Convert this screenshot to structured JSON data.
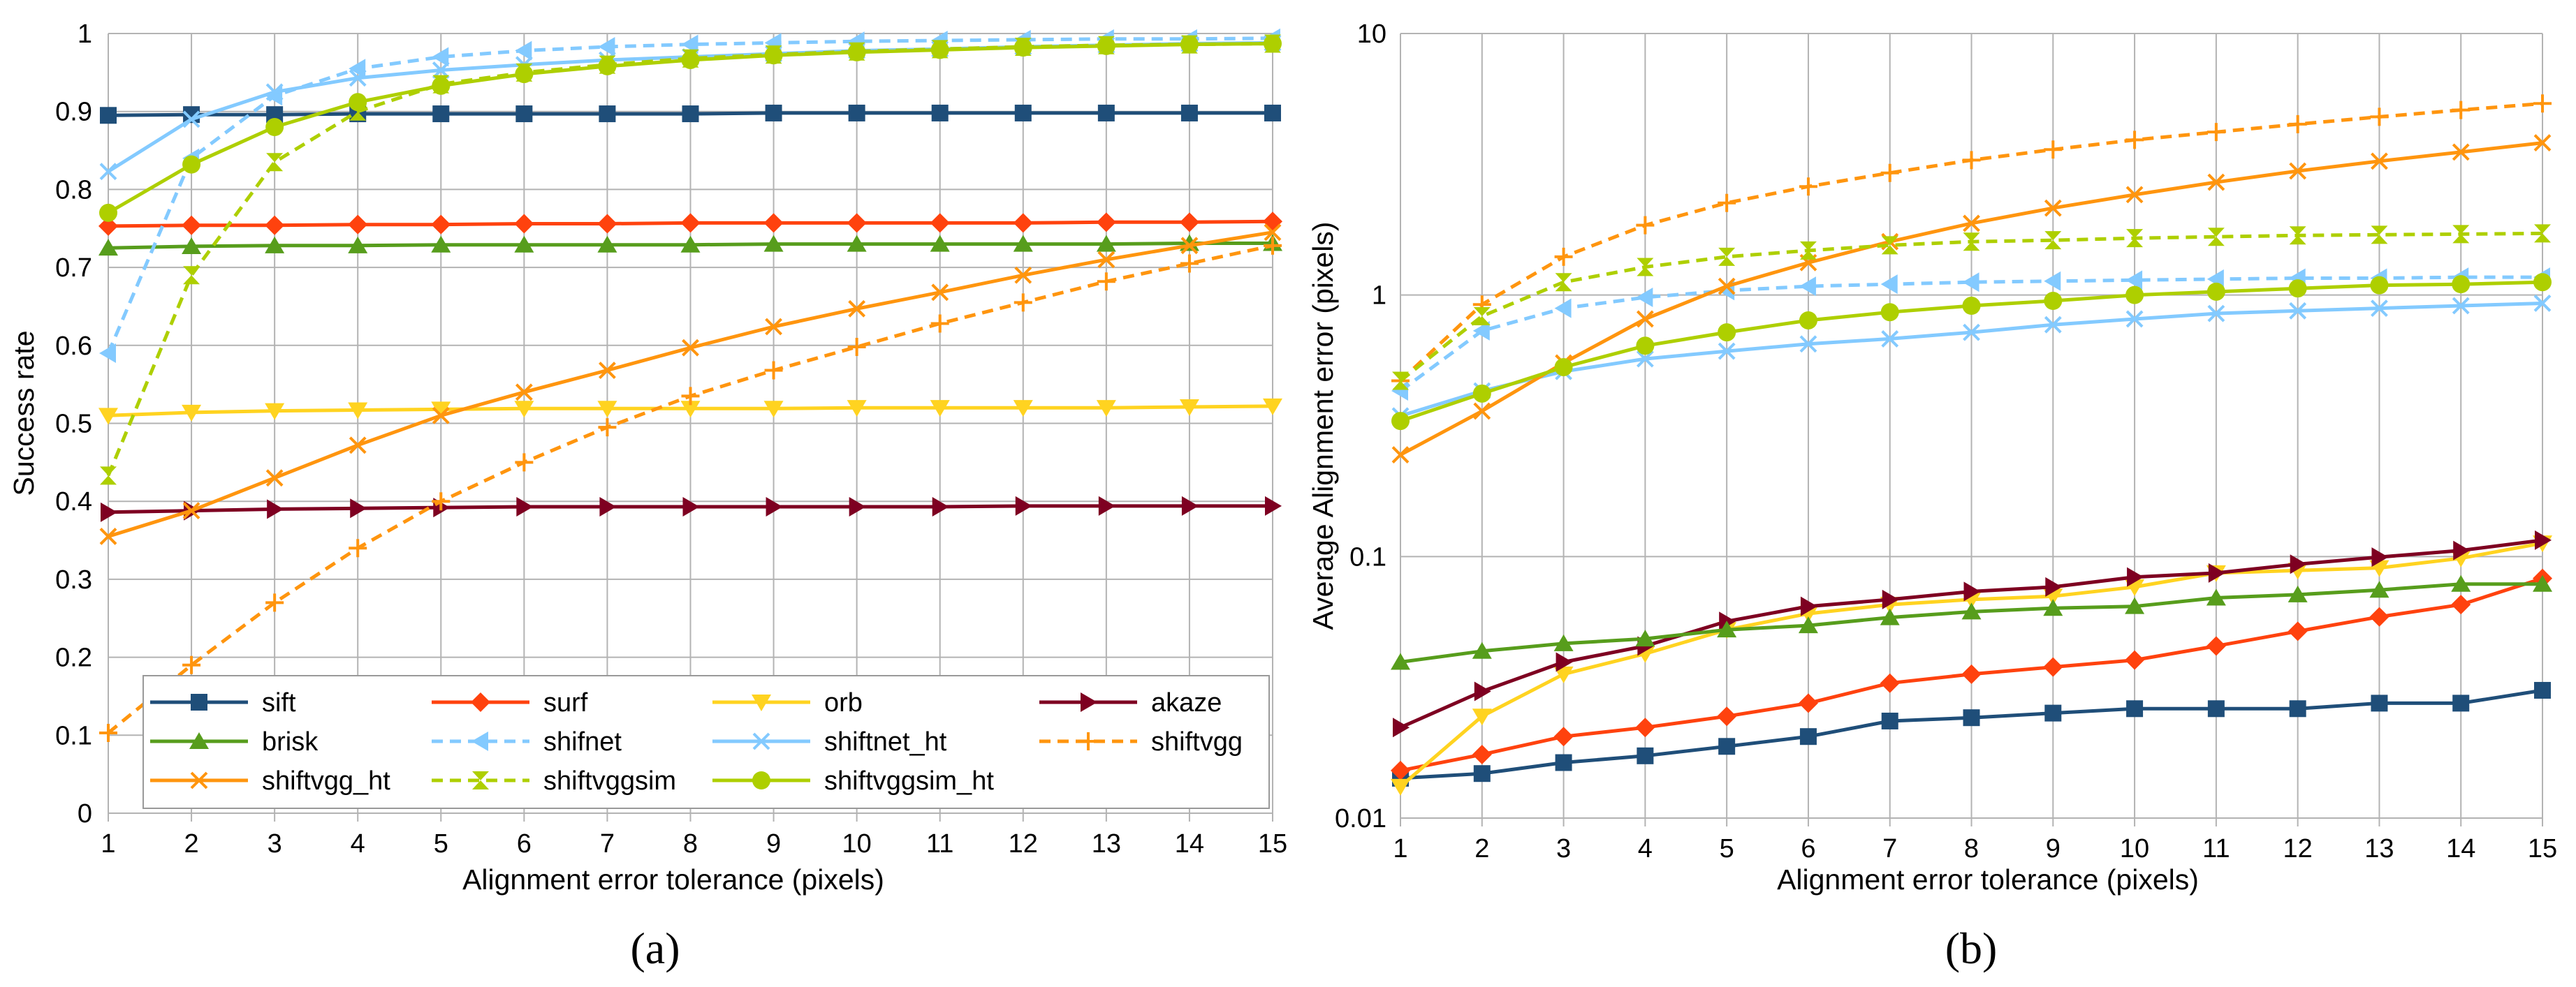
{
  "series_styles": {
    "sift": {
      "color": "#1f4e79",
      "dash": false,
      "marker": "square"
    },
    "surf": {
      "color": "#ff420e",
      "dash": false,
      "marker": "diamond"
    },
    "orb": {
      "color": "#ffd320",
      "dash": false,
      "marker": "tri-down"
    },
    "akaze": {
      "color": "#7e0021",
      "dash": false,
      "marker": "tri-right"
    },
    "brisk": {
      "color": "#579d1c",
      "dash": false,
      "marker": "tri-up"
    },
    "shifnet": {
      "color": "#83caff",
      "dash": true,
      "marker": "tri-left"
    },
    "shiftnet_ht": {
      "color": "#83caff",
      "dash": false,
      "marker": "x"
    },
    "shiftvgg": {
      "color": "#ff950e",
      "dash": true,
      "marker": "plus"
    },
    "shiftvgg_ht": {
      "color": "#ff950e",
      "dash": false,
      "marker": "x"
    },
    "shiftvggsim": {
      "color": "#aecf00",
      "dash": true,
      "marker": "hourglass"
    },
    "shiftvggsim_ht": {
      "color": "#aecf00",
      "dash": false,
      "marker": "circle"
    }
  },
  "chart_data": [
    {
      "type": "line",
      "caption": "(a)",
      "xlabel": "Alignment error tolerance (pixels)",
      "ylabel": "Success rate",
      "x": [
        1,
        2,
        3,
        4,
        5,
        6,
        7,
        8,
        9,
        10,
        11,
        12,
        13,
        14,
        15
      ],
      "xticks": [
        "1",
        "2",
        "3",
        "4",
        "5",
        "6",
        "7",
        "8",
        "9",
        "10",
        "11",
        "12",
        "13",
        "14",
        "15"
      ],
      "ylim": [
        0,
        1
      ],
      "yticks": [
        "0",
        "0.1",
        "0.2",
        "0.3",
        "0.4",
        "0.5",
        "0.6",
        "0.7",
        "0.8",
        "0.9",
        "1"
      ],
      "ytick_values": [
        0,
        0.1,
        0.2,
        0.3,
        0.4,
        0.5,
        0.6,
        0.7,
        0.8,
        0.9,
        1
      ],
      "legend": [
        "sift",
        "surf",
        "orb",
        "akaze",
        "brisk",
        "shifnet",
        "shiftnet_ht",
        "shiftvgg",
        "shiftvgg_ht",
        "shiftvggsim",
        "shiftvggsim_ht"
      ],
      "series": [
        {
          "name": "sift",
          "values": [
            0.895,
            0.896,
            0.896,
            0.897,
            0.897,
            0.897,
            0.897,
            0.897,
            0.898,
            0.898,
            0.898,
            0.898,
            0.898,
            0.898,
            0.898
          ]
        },
        {
          "name": "surf",
          "values": [
            0.753,
            0.754,
            0.754,
            0.755,
            0.755,
            0.756,
            0.756,
            0.757,
            0.757,
            0.757,
            0.757,
            0.757,
            0.758,
            0.758,
            0.759
          ]
        },
        {
          "name": "orb",
          "values": [
            0.51,
            0.514,
            0.516,
            0.517,
            0.518,
            0.519,
            0.519,
            0.519,
            0.519,
            0.52,
            0.52,
            0.52,
            0.52,
            0.521,
            0.522
          ]
        },
        {
          "name": "akaze",
          "values": [
            0.386,
            0.388,
            0.39,
            0.391,
            0.392,
            0.393,
            0.393,
            0.393,
            0.393,
            0.393,
            0.393,
            0.394,
            0.394,
            0.394,
            0.394
          ]
        },
        {
          "name": "brisk",
          "values": [
            0.725,
            0.727,
            0.728,
            0.728,
            0.729,
            0.729,
            0.729,
            0.729,
            0.73,
            0.73,
            0.73,
            0.73,
            0.73,
            0.731,
            0.731
          ]
        },
        {
          "name": "shifnet",
          "values": [
            0.59,
            0.84,
            0.92,
            0.955,
            0.97,
            0.978,
            0.983,
            0.986,
            0.988,
            0.99,
            0.991,
            0.992,
            0.993,
            0.993,
            0.994
          ]
        },
        {
          "name": "shiftnet_ht",
          "values": [
            0.823,
            0.89,
            0.925,
            0.943,
            0.953,
            0.96,
            0.966,
            0.97,
            0.974,
            0.978,
            0.98,
            0.983,
            0.985,
            0.987,
            0.988
          ]
        },
        {
          "name": "shiftvgg",
          "values": [
            0.103,
            0.19,
            0.27,
            0.34,
            0.4,
            0.45,
            0.495,
            0.535,
            0.568,
            0.598,
            0.628,
            0.655,
            0.682,
            0.705,
            0.728
          ]
        },
        {
          "name": "shiftvgg_ht",
          "values": [
            0.355,
            0.388,
            0.43,
            0.472,
            0.51,
            0.54,
            0.568,
            0.597,
            0.624,
            0.647,
            0.668,
            0.69,
            0.71,
            0.728,
            0.745
          ]
        },
        {
          "name": "shiftvggsim",
          "values": [
            0.433,
            0.69,
            0.835,
            0.9,
            0.935,
            0.95,
            0.96,
            0.968,
            0.973,
            0.977,
            0.98,
            0.983,
            0.985,
            0.986,
            0.987
          ]
        },
        {
          "name": "shiftvggsim_ht",
          "values": [
            0.77,
            0.832,
            0.88,
            0.912,
            0.933,
            0.948,
            0.958,
            0.966,
            0.972,
            0.976,
            0.979,
            0.982,
            0.984,
            0.986,
            0.987
          ]
        }
      ]
    },
    {
      "type": "line",
      "caption": "(b)",
      "xlabel": "Alignment error tolerance (pixels)",
      "ylabel": "Average Alignment error (pixels)",
      "yscale": "log",
      "x": [
        1,
        2,
        3,
        4,
        5,
        6,
        7,
        8,
        9,
        10,
        11,
        12,
        13,
        14,
        15
      ],
      "xticks": [
        "1",
        "2",
        "3",
        "4",
        "5",
        "6",
        "7",
        "8",
        "9",
        "10",
        "11",
        "12",
        "13",
        "14",
        "15"
      ],
      "ylim": [
        0.01,
        10
      ],
      "yticks": [
        "0.01",
        "0.1",
        "1",
        "10"
      ],
      "ytick_values": [
        0.01,
        0.1,
        1,
        10
      ],
      "series": [
        {
          "name": "sift",
          "values": [
            0.0142,
            0.0148,
            0.0163,
            0.0173,
            0.0188,
            0.0205,
            0.0235,
            0.0242,
            0.0252,
            0.0262,
            0.0262,
            0.0262,
            0.0275,
            0.0275,
            0.0308
          ]
        },
        {
          "name": "surf",
          "values": [
            0.0152,
            0.0175,
            0.0205,
            0.0222,
            0.0245,
            0.0275,
            0.0328,
            0.0355,
            0.0378,
            0.0402,
            0.0455,
            0.0518,
            0.0588,
            0.0655,
            0.0825
          ]
        },
        {
          "name": "orb",
          "values": [
            0.0132,
            0.0245,
            0.0355,
            0.0425,
            0.0525,
            0.0605,
            0.0655,
            0.0685,
            0.0705,
            0.0765,
            0.0865,
            0.0885,
            0.0905,
            0.0985,
            0.1125
          ]
        },
        {
          "name": "akaze",
          "values": [
            0.0222,
            0.0305,
            0.0395,
            0.0455,
            0.0565,
            0.0645,
            0.0685,
            0.0735,
            0.0765,
            0.0835,
            0.0865,
            0.0935,
            0.0995,
            0.1055,
            0.1155
          ]
        },
        {
          "name": "brisk",
          "values": [
            0.0395,
            0.0435,
            0.0465,
            0.0485,
            0.0525,
            0.0545,
            0.0585,
            0.0615,
            0.0635,
            0.0645,
            0.0695,
            0.0715,
            0.0745,
            0.0785,
            0.0785
          ]
        },
        {
          "name": "shifnet",
          "values": [
            0.43,
            0.73,
            0.89,
            0.98,
            1.04,
            1.08,
            1.1,
            1.12,
            1.13,
            1.14,
            1.15,
            1.16,
            1.16,
            1.17,
            1.17
          ]
        },
        {
          "name": "shiftnet_ht",
          "values": [
            0.345,
            0.43,
            0.51,
            0.57,
            0.61,
            0.65,
            0.68,
            0.72,
            0.77,
            0.81,
            0.85,
            0.87,
            0.89,
            0.91,
            0.93
          ]
        },
        {
          "name": "shiftvgg",
          "values": [
            0.47,
            0.92,
            1.4,
            1.85,
            2.25,
            2.6,
            2.93,
            3.28,
            3.6,
            3.92,
            4.2,
            4.5,
            4.8,
            5.1,
            5.4
          ]
        },
        {
          "name": "shiftvgg_ht",
          "values": [
            0.245,
            0.36,
            0.55,
            0.81,
            1.08,
            1.33,
            1.6,
            1.88,
            2.15,
            2.42,
            2.7,
            2.98,
            3.25,
            3.52,
            3.82
          ]
        },
        {
          "name": "shiftvggsim",
          "values": [
            0.47,
            0.83,
            1.12,
            1.28,
            1.4,
            1.48,
            1.55,
            1.6,
            1.62,
            1.65,
            1.67,
            1.69,
            1.7,
            1.71,
            1.72
          ]
        },
        {
          "name": "shiftvggsim_ht",
          "values": [
            0.33,
            0.42,
            0.53,
            0.64,
            0.72,
            0.8,
            0.86,
            0.91,
            0.95,
            1.0,
            1.03,
            1.06,
            1.09,
            1.1,
            1.12
          ]
        }
      ]
    }
  ]
}
